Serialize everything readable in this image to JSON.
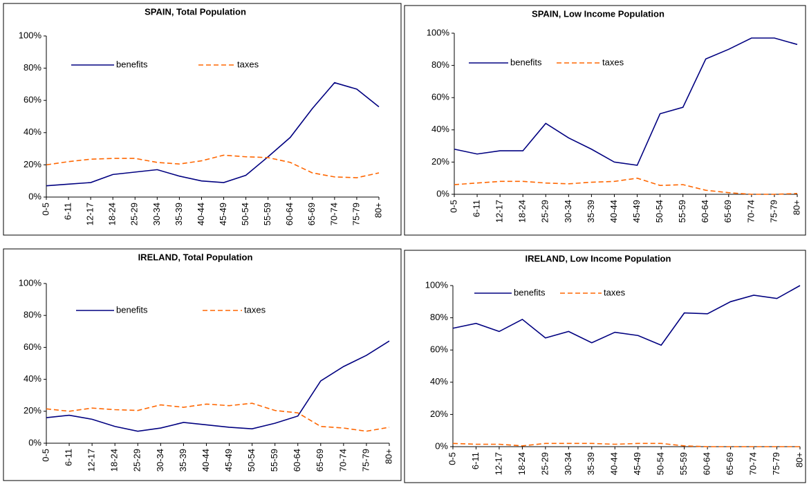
{
  "chart_data": [
    {
      "type": "line",
      "title": "SPAIN, Total Population",
      "categories": [
        "0-5",
        "6-11",
        "12-17",
        "18-24",
        "25-29",
        "30-34",
        "35-39",
        "40-44",
        "45-49",
        "50-54",
        "55-59",
        "60-64",
        "65-69",
        "70-74",
        "75-79",
        "80+"
      ],
      "series": [
        {
          "name": "benefits",
          "color": "#000080",
          "values": [
            7,
            8,
            9,
            14,
            15.5,
            17,
            13,
            10,
            9,
            13.5,
            25,
            37,
            55,
            71,
            67,
            56
          ]
        },
        {
          "name": "taxes",
          "color": "#ff6600",
          "dashed": true,
          "values": [
            20,
            22,
            23.5,
            24,
            24,
            21.5,
            20.5,
            22.5,
            26,
            25,
            24.5,
            21.5,
            15,
            12.5,
            12,
            15
          ]
        }
      ],
      "ylim": [
        0,
        100
      ],
      "yticks": [
        {
          "value": 0,
          "label": "0%"
        },
        {
          "value": 20,
          "label": "20%"
        },
        {
          "value": 40,
          "label": "40%"
        },
        {
          "value": 60,
          "label": "60%"
        },
        {
          "value": 80,
          "label": "80%"
        },
        {
          "value": 100,
          "label": "100%"
        }
      ]
    },
    {
      "type": "line",
      "title": "SPAIN, Low Income Population",
      "categories": [
        "0-5",
        "6-11",
        "12-17",
        "18-24",
        "25-29",
        "30-34",
        "35-39",
        "40-44",
        "45-49",
        "50-54",
        "55-59",
        "60-64",
        "65-69",
        "70-74",
        "75-79",
        "80+"
      ],
      "series": [
        {
          "name": "benefits",
          "color": "#000080",
          "values": [
            28,
            25,
            27,
            27,
            44,
            35,
            28,
            20,
            18,
            50,
            54,
            84,
            90,
            97,
            97,
            93
          ]
        },
        {
          "name": "taxes",
          "color": "#ff6600",
          "dashed": true,
          "values": [
            6,
            7,
            8,
            8,
            7,
            6.5,
            7.5,
            8,
            10,
            5.5,
            6,
            2.5,
            1,
            0,
            0,
            0.5
          ]
        }
      ],
      "ylim": [
        0,
        100
      ],
      "yticks": [
        {
          "value": 0,
          "label": "0%"
        },
        {
          "value": 20,
          "label": "20%"
        },
        {
          "value": 40,
          "label": "40%"
        },
        {
          "value": 60,
          "label": "60%"
        },
        {
          "value": 80,
          "label": "80%"
        },
        {
          "value": 100,
          "label": "100%"
        }
      ]
    },
    {
      "type": "line",
      "title": "IRELAND, Total Population",
      "categories": [
        "0-5",
        "6-11",
        "12-17",
        "18-24",
        "25-29",
        "30-34",
        "35-39",
        "40-44",
        "45-49",
        "50-54",
        "55-59",
        "60-64",
        "65-69",
        "70-74",
        "75-79",
        "80+"
      ],
      "series": [
        {
          "name": "benefits",
          "color": "#000080",
          "values": [
            16,
            17.5,
            15,
            10.5,
            7.5,
            9.5,
            13,
            11.5,
            10,
            9,
            12.5,
            17,
            39,
            48,
            55,
            64
          ]
        },
        {
          "name": "taxes",
          "color": "#ff6600",
          "dashed": true,
          "values": [
            21.5,
            20,
            22,
            21,
            20.5,
            24,
            22.5,
            24.5,
            23.5,
            25,
            20.5,
            19,
            10.5,
            9.5,
            7.5,
            10
          ]
        }
      ],
      "ylim": [
        0,
        100
      ],
      "yticks": [
        {
          "value": 0,
          "label": "0%"
        },
        {
          "value": 20,
          "label": "20%"
        },
        {
          "value": 40,
          "label": "40%"
        },
        {
          "value": 60,
          "label": "60%"
        },
        {
          "value": 80,
          "label": "80%"
        },
        {
          "value": 100,
          "label": "100%"
        }
      ]
    },
    {
      "type": "line",
      "title": "IRELAND, Low Income Population",
      "categories": [
        "0-5",
        "6-11",
        "12-17",
        "18-24",
        "25-29",
        "30-34",
        "35-39",
        "40-44",
        "45-49",
        "50-54",
        "55-59",
        "60-64",
        "65-69",
        "70-74",
        "75-79",
        "80+"
      ],
      "series": [
        {
          "name": "benefits",
          "color": "#000080",
          "values": [
            73.5,
            76.5,
            71.5,
            79,
            67.5,
            71.5,
            64.5,
            71,
            69,
            63,
            83,
            82.5,
            90,
            94,
            92,
            100
          ]
        },
        {
          "name": "taxes",
          "color": "#ff6600",
          "dashed": true,
          "values": [
            2,
            1.5,
            1.5,
            0.5,
            2,
            2,
            2,
            1.5,
            2,
            2,
            0.5,
            0,
            0,
            0,
            0,
            0
          ]
        }
      ],
      "ylim": [
        0,
        100
      ],
      "yticks": [
        {
          "value": 0,
          "label": "0%"
        },
        {
          "value": 20,
          "label": "20%"
        },
        {
          "value": 40,
          "label": "40%"
        },
        {
          "value": 60,
          "label": "60%"
        },
        {
          "value": 80,
          "label": "80%"
        },
        {
          "value": 100,
          "label": "100%"
        }
      ]
    }
  ]
}
